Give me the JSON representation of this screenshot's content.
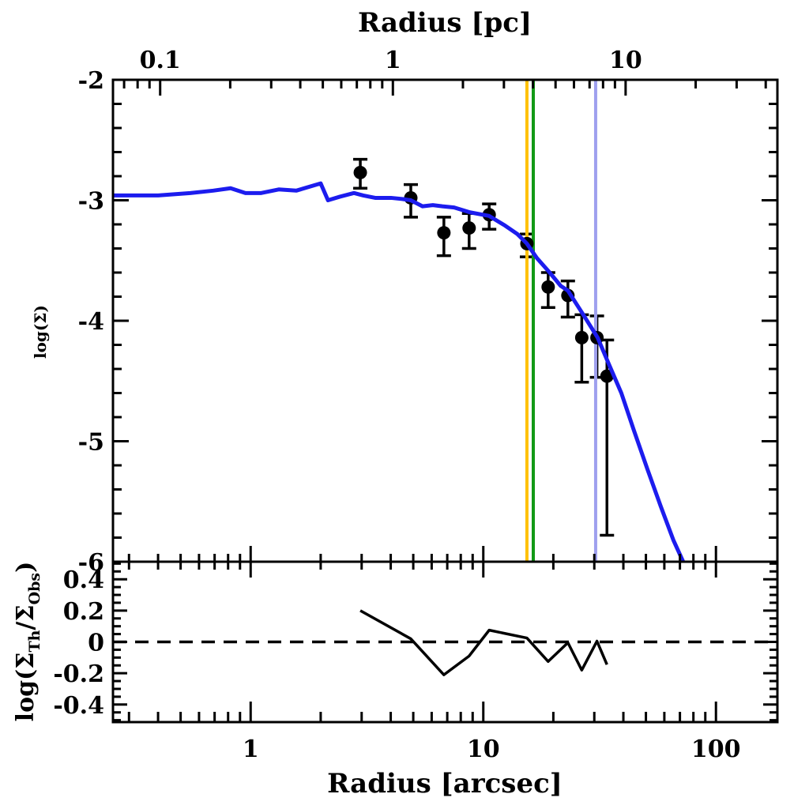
{
  "chart_data": {
    "type": "line",
    "description": "Two-panel radial surface density profile: observed points with error bars, theoretical model curve, and logarithmic residuals",
    "axes": {
      "top_x": {
        "title": "Radius [pc]",
        "scale": "log",
        "range": [
          0.0627,
          44.9
        ],
        "major": [
          {
            "v": 0.1,
            "l": "0.1"
          },
          {
            "v": 1,
            "l": "1"
          },
          {
            "v": 10,
            "l": "10"
          }
        ]
      },
      "bottom_x": {
        "title": "Radius [arcsec]",
        "scale": "log",
        "range": [
          0.256,
          183.7
        ],
        "major": [
          {
            "v": 1,
            "l": "1"
          },
          {
            "v": 10,
            "l": "10"
          },
          {
            "v": 100,
            "l": "100"
          }
        ]
      },
      "top_y": {
        "title": "log(Σ)",
        "range": [
          -6,
          -2
        ],
        "major": [
          {
            "v": -2,
            "l": "-2"
          },
          {
            "v": -3,
            "l": "-3"
          },
          {
            "v": -4,
            "l": "-4"
          },
          {
            "v": -5,
            "l": "-5"
          },
          {
            "v": -6,
            "l": "-6"
          }
        ],
        "minor_step": 0.2
      },
      "bottom_y": {
        "title_parts": [
          {
            "t": "log(Σ",
            "sub": false
          },
          {
            "t": "Th",
            "sub": true
          },
          {
            "t": "/Σ",
            "sub": false
          },
          {
            "t": "Obs",
            "sub": true
          },
          {
            "t": ")",
            "sub": false
          }
        ],
        "range": [
          -0.512,
          0.512
        ],
        "major": [
          {
            "v": 0.4,
            "l": "0.4"
          },
          {
            "v": 0.2,
            "l": "0.2"
          },
          {
            "v": 0,
            "l": "0"
          },
          {
            "v": -0.2,
            "l": "-0.2"
          },
          {
            "v": -0.4,
            "l": "-0.4"
          }
        ],
        "minor_step": 0.05
      }
    },
    "model_curve": {
      "color": "#1c1cee",
      "points": [
        [
          0.257,
          -2.96
        ],
        [
          0.4,
          -2.96
        ],
        [
          0.55,
          -2.94
        ],
        [
          0.69,
          -2.92
        ],
        [
          0.82,
          -2.9
        ],
        [
          0.95,
          -2.94
        ],
        [
          1.11,
          -2.94
        ],
        [
          1.32,
          -2.91
        ],
        [
          1.57,
          -2.92
        ],
        [
          2.0,
          -2.86
        ],
        [
          2.15,
          -3.0
        ],
        [
          2.42,
          -2.97
        ],
        [
          2.78,
          -2.94
        ],
        [
          3.05,
          -2.96
        ],
        [
          3.43,
          -2.98
        ],
        [
          4.01,
          -2.98
        ],
        [
          4.51,
          -2.99
        ],
        [
          4.88,
          -3.0
        ],
        [
          5.48,
          -3.05
        ],
        [
          6.07,
          -3.04
        ],
        [
          6.67,
          -3.05
        ],
        [
          7.49,
          -3.06
        ],
        [
          8.76,
          -3.1
        ],
        [
          10.6,
          -3.13
        ],
        [
          12.4,
          -3.21
        ],
        [
          14.0,
          -3.28
        ],
        [
          15.4,
          -3.36
        ],
        [
          17.0,
          -3.48
        ],
        [
          19.1,
          -3.59
        ],
        [
          21.5,
          -3.71
        ],
        [
          23.1,
          -3.75
        ],
        [
          26.5,
          -3.93
        ],
        [
          31.0,
          -4.14
        ],
        [
          34.3,
          -4.34
        ],
        [
          39.2,
          -4.6
        ],
        [
          44.4,
          -4.91
        ],
        [
          50.7,
          -5.23
        ],
        [
          57.9,
          -5.54
        ],
        [
          65.6,
          -5.82
        ],
        [
          73.1,
          -6.02
        ]
      ]
    },
    "observed_points": {
      "color": "#000000",
      "points": [
        {
          "r": 2.96,
          "logS": -2.77,
          "eu": 0.11,
          "ed": 0.13
        },
        {
          "r": 4.88,
          "logS": -2.98,
          "eu": 0.11,
          "ed": 0.16
        },
        {
          "r": 6.77,
          "logS": -3.27,
          "eu": 0.13,
          "ed": 0.19
        },
        {
          "r": 8.69,
          "logS": -3.23,
          "eu": 0.12,
          "ed": 0.17
        },
        {
          "r": 10.6,
          "logS": -3.12,
          "eu": 0.09,
          "ed": 0.12
        },
        {
          "r": 15.4,
          "logS": -3.36,
          "eu": 0.08,
          "ed": 0.11
        },
        {
          "r": 19.0,
          "logS": -3.72,
          "eu": 0.12,
          "ed": 0.17
        },
        {
          "r": 23.1,
          "logS": -3.79,
          "eu": 0.12,
          "ed": 0.18
        },
        {
          "r": 26.5,
          "logS": -4.14,
          "eu": 0.19,
          "ed": 0.37
        },
        {
          "r": 30.8,
          "logS": -4.14,
          "eu": 0.18,
          "ed": 0.33
        },
        {
          "r": 34.0,
          "logS": -4.46,
          "eu": 0.3,
          "ed": 1.32
        }
      ]
    },
    "residuals": {
      "color": "#000000",
      "points": [
        [
          2.96,
          0.2
        ],
        [
          4.88,
          0.02
        ],
        [
          6.77,
          -0.21
        ],
        [
          8.69,
          -0.09
        ],
        [
          10.6,
          0.075
        ],
        [
          15.4,
          0.025
        ],
        [
          19.0,
          -0.125
        ],
        [
          23.1,
          -0.005
        ],
        [
          26.5,
          -0.18
        ],
        [
          30.8,
          0.005
        ],
        [
          34.0,
          -0.145
        ]
      ]
    },
    "vertical_lines": [
      {
        "r": 15.4,
        "color": "#ffc107",
        "name": "yellow-radius-marker"
      },
      {
        "r": 16.4,
        "color": "#129a16",
        "name": "green-radius-marker"
      },
      {
        "r": 30.4,
        "color": "#9fa0ee",
        "name": "periwinkle-radius-marker"
      }
    ],
    "zero_line": {
      "value": 0,
      "style": "dashed",
      "color": "#000000"
    }
  }
}
